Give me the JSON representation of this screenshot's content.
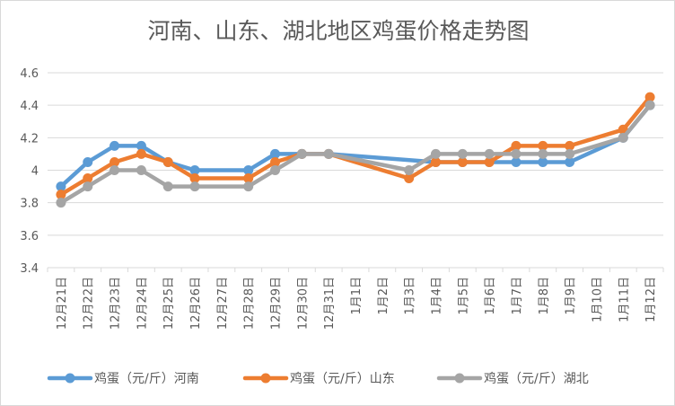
{
  "chart_data": {
    "type": "line",
    "title": "河南、山东、湖北地区鸡蛋价格走势图",
    "xlabel": "",
    "ylabel": "",
    "categories": [
      "12月21日",
      "12月22日",
      "12月23日",
      "12月24日",
      "12月25日",
      "12月26日",
      "12月27日",
      "12月28日",
      "12月29日",
      "12月30日",
      "12月31日",
      "1月1日",
      "1月2日",
      "1月3日",
      "1月4日",
      "1月5日",
      "1月6日",
      "1月7日",
      "1月8日",
      "1月9日",
      "1月10日",
      "1月11日",
      "1月12日"
    ],
    "ylim": [
      3.4,
      4.6
    ],
    "yticks": [
      "3.4",
      "3.6",
      "3.8",
      "4",
      "4.2",
      "4.4",
      "4.6"
    ],
    "grid": true,
    "legend_position": "bottom",
    "series": [
      {
        "name": "鸡蛋（元/斤）河南",
        "color": "#5b9bd5",
        "values": [
          3.9,
          4.05,
          4.15,
          4.15,
          4.05,
          4.0,
          null,
          4.0,
          4.1,
          4.1,
          4.1,
          null,
          null,
          null,
          4.05,
          4.05,
          4.05,
          4.05,
          4.05,
          4.05,
          null,
          4.2,
          4.4
        ]
      },
      {
        "name": "鸡蛋（元/斤）山东",
        "color": "#ed7d31",
        "values": [
          3.85,
          3.95,
          4.05,
          4.1,
          4.05,
          3.95,
          null,
          3.95,
          4.05,
          4.1,
          4.1,
          null,
          null,
          3.95,
          4.05,
          4.05,
          4.05,
          4.15,
          4.15,
          4.15,
          null,
          4.25,
          4.45
        ]
      },
      {
        "name": "鸡蛋（元/斤）湖北",
        "color": "#a5a5a5",
        "values": [
          3.8,
          3.9,
          4.0,
          4.0,
          3.9,
          3.9,
          null,
          3.9,
          4.0,
          4.1,
          4.1,
          null,
          null,
          4.0,
          4.1,
          4.1,
          4.1,
          4.1,
          4.1,
          4.1,
          null,
          4.2,
          4.4
        ]
      }
    ]
  }
}
